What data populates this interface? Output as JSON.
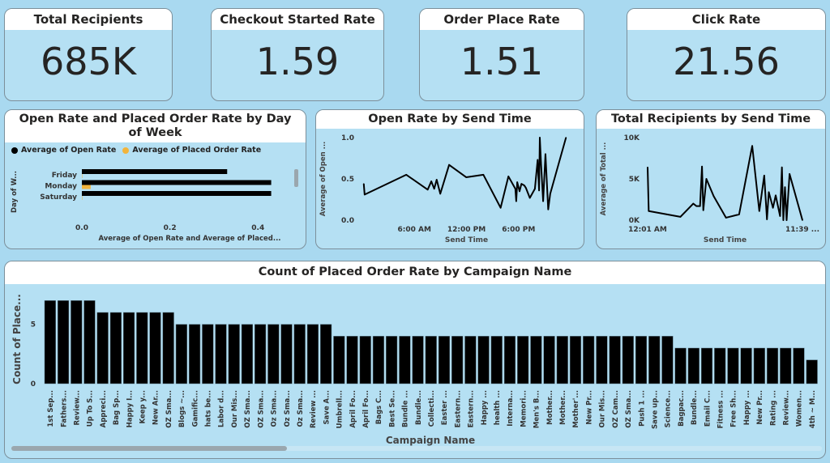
{
  "kpis": [
    {
      "title": "Total Recipients",
      "value": "685K"
    },
    {
      "title": "Checkout Started Rate",
      "value": "1.59"
    },
    {
      "title": "Order Place Rate",
      "value": "1.51"
    },
    {
      "title": "Click Rate",
      "value": "21.56"
    }
  ],
  "colors": {
    "background": "#a9d9f0",
    "card": "#b5e0f3",
    "series_open": "#000000",
    "series_placed": "#f2b43c"
  },
  "chart_data": [
    {
      "type": "bar",
      "orientation": "horizontal",
      "title": "Open Rate and Placed Order Rate by Day of Week",
      "legend_position": "top-left",
      "ylabel": "Day of W...",
      "xlabel": "Average of Open Rate and Average of Placed...",
      "categories": [
        "Friday",
        "Monday",
        "Saturday"
      ],
      "series": [
        {
          "name": "Average of Open Rate",
          "color": "#000000",
          "values": [
            0.33,
            0.43,
            0.43
          ]
        },
        {
          "name": "Average of Placed Order Rate",
          "color": "#f2b43c",
          "values": [
            0.0,
            0.02,
            0.0
          ]
        }
      ],
      "xticks": [
        "0.0",
        "0.2",
        "0.4"
      ],
      "xlim": [
        0,
        0.5
      ]
    },
    {
      "type": "line",
      "title": "Open Rate by Send Time",
      "xlabel": "Send Time",
      "ylabel": "Average of Open ...",
      "xticks": [
        {
          "t": "06:00",
          "label": "6:00 AM"
        },
        {
          "t": "12:00",
          "label": "12:00 PM"
        },
        {
          "t": "18:00",
          "label": "6:00 PM"
        }
      ],
      "yticks": [
        "0.0",
        "0.5",
        "1.0"
      ],
      "ylim": [
        0,
        1
      ],
      "xlim": [
        "00:00",
        "24:00"
      ],
      "x": [
        "00:10",
        "00:16",
        "05:04",
        "07:32",
        "07:57",
        "08:17",
        "08:34",
        "08:59",
        "10:00",
        "11:58",
        "13:57",
        "15:56",
        "16:50",
        "17:38",
        "17:44",
        "17:51",
        "18:07",
        "18:20",
        "18:40",
        "18:51",
        "19:18",
        "19:53",
        "20:12",
        "20:22",
        "20:27",
        "20:35",
        "20:50",
        "21:06",
        "21:25",
        "21:39",
        "23:28"
      ],
      "y": [
        0.44,
        0.31,
        0.55,
        0.37,
        0.47,
        0.38,
        0.49,
        0.32,
        0.67,
        0.52,
        0.55,
        0.15,
        0.53,
        0.38,
        0.23,
        0.46,
        0.35,
        0.44,
        0.42,
        0.39,
        0.27,
        0.38,
        0.73,
        0.36,
        1.0,
        0.7,
        0.23,
        0.8,
        0.13,
        0.32,
        1.0
      ]
    },
    {
      "type": "line",
      "title": "Total Recipients by Send Time",
      "xlabel": "Send Time",
      "ylabel": "Average of Total ...",
      "xticks": [
        {
          "t": "00:01",
          "label": "12:01 AM"
        },
        {
          "t": "23:39",
          "label": "11:39 ..."
        }
      ],
      "yticks": [
        {
          "v": 0,
          "label": "0K"
        },
        {
          "v": 5000,
          "label": "5K"
        },
        {
          "v": 10000,
          "label": "10K"
        }
      ],
      "ylim": [
        0,
        10000
      ],
      "xlim": [
        "00:01",
        "23:39"
      ],
      "x": [
        "00:01",
        "00:11",
        "05:01",
        "06:59",
        "07:29",
        "08:01",
        "08:19",
        "08:31",
        "08:59",
        "10:06",
        "11:59",
        "13:59",
        "15:59",
        "17:04",
        "17:49",
        "18:14",
        "18:31",
        "19:09",
        "19:34",
        "20:14",
        "20:31",
        "20:44",
        "20:59",
        "21:14",
        "21:41",
        "23:39"
      ],
      "y": [
        6400,
        1100,
        400,
        2000,
        1700,
        1700,
        6500,
        1200,
        5000,
        2900,
        300,
        700,
        9000,
        1100,
        5400,
        100,
        3400,
        1500,
        3000,
        500,
        6400,
        0,
        4000,
        0,
        5600,
        0
      ]
    },
    {
      "type": "bar",
      "title": "Count of Placed Order Rate by Campaign Name",
      "xlabel": "Campaign Name",
      "ylabel": "Count of Place...",
      "yticks": [
        "0",
        "5"
      ],
      "ylim": [
        0,
        7.5
      ],
      "categories": [
        "1st Sep...",
        "Fathers...",
        "Review...",
        "Up To S...",
        "Appreci...",
        "Bag Sp...",
        "Happy I...",
        "Keep y...",
        "New Ar...",
        "OZ Sma...",
        "Blogs ~...",
        "Gamific...",
        "hats be...",
        "Labor d...",
        "Our Mis...",
        "OZ Sma...",
        "OZ Sma...",
        "Oz Sma...",
        "Oz Sma...",
        "Oz Sma...",
        "Review ...",
        "Save A...",
        "Umbrell...",
        "April Fo...",
        "April Fo...",
        "Bags C...",
        "Best Se...",
        "Bundle ...",
        "Bundle...",
        "Collecti...",
        "Easter ...",
        "Eastern...",
        "Eastern...",
        "Happy ...",
        "health ...",
        "Interna...",
        "Memori...",
        "Men's B...",
        "Mother...",
        "Mother...",
        "Mother'...",
        "New Pr...",
        "Our Mis...",
        "OZ Cam...",
        "OZ Sma...",
        "Push 1 ...",
        "Save up...",
        "Science...",
        "Bagpac...",
        "Bundle...",
        "Email C...",
        "Fitness ...",
        "Free Sh...",
        "Happy ...",
        "New Pr...",
        "Rating ...",
        "Review...",
        "Women...",
        "4th ~ M..."
      ],
      "values": [
        7,
        7,
        7,
        7,
        6,
        6,
        6,
        6,
        6,
        6,
        5,
        5,
        5,
        5,
        5,
        5,
        5,
        5,
        5,
        5,
        5,
        5,
        4,
        4,
        4,
        4,
        4,
        4,
        4,
        4,
        4,
        4,
        4,
        4,
        4,
        4,
        4,
        4,
        4,
        4,
        4,
        4,
        4,
        4,
        4,
        4,
        4,
        4,
        3,
        3,
        3,
        3,
        3,
        3,
        3,
        3,
        3,
        3,
        2
      ]
    }
  ]
}
